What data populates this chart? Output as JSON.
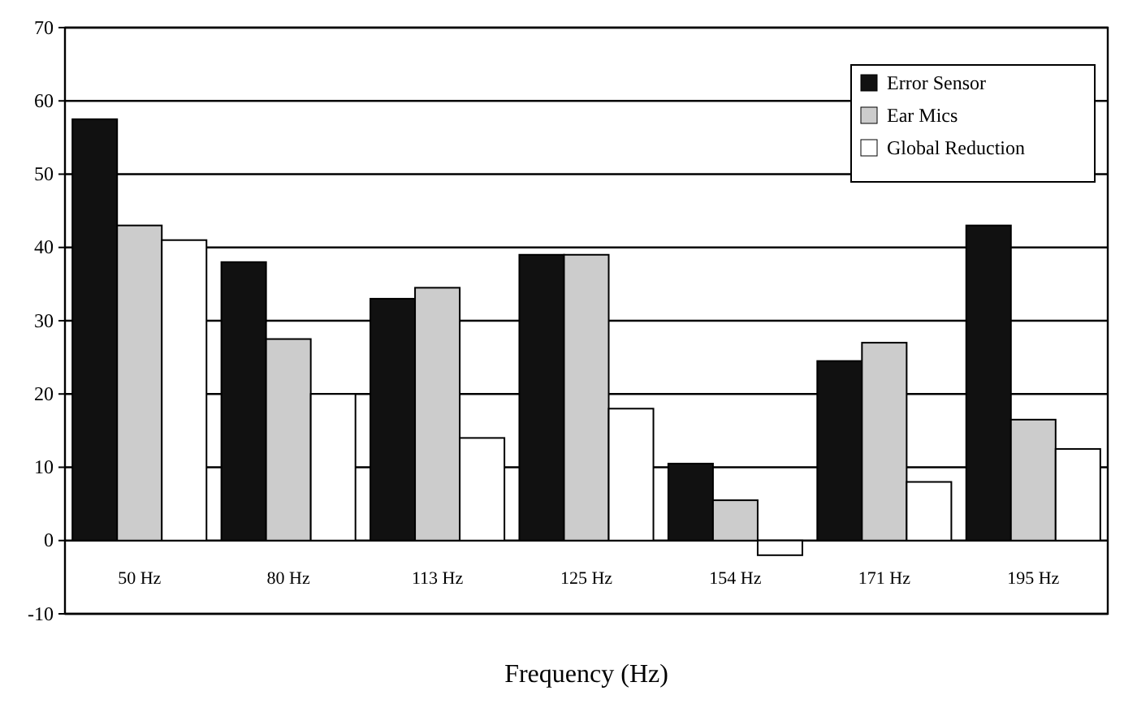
{
  "chart_data": {
    "type": "bar",
    "xlabel": "Frequency (Hz)",
    "categories": [
      "50 Hz",
      "80 Hz",
      "113 Hz",
      "125 Hz",
      "154 Hz",
      "171 Hz",
      "195 Hz"
    ],
    "series": [
      {
        "name": "Error Sensor",
        "color": "#111111",
        "values": [
          57.5,
          38,
          33,
          39,
          10.5,
          24.5,
          43
        ]
      },
      {
        "name": "Ear Mics",
        "color": "#cccccc",
        "values": [
          43,
          27.5,
          34.5,
          39,
          5.5,
          27,
          16.5
        ]
      },
      {
        "name": "Global Reduction",
        "color": "#ffffff",
        "values": [
          41,
          20,
          14,
          18,
          -2,
          8,
          12.5
        ]
      }
    ],
    "ylim": [
      -10,
      70
    ],
    "yticks": [
      -10,
      0,
      10,
      20,
      30,
      40,
      50,
      60,
      70
    ],
    "grid": "y",
    "legend": "top right"
  }
}
